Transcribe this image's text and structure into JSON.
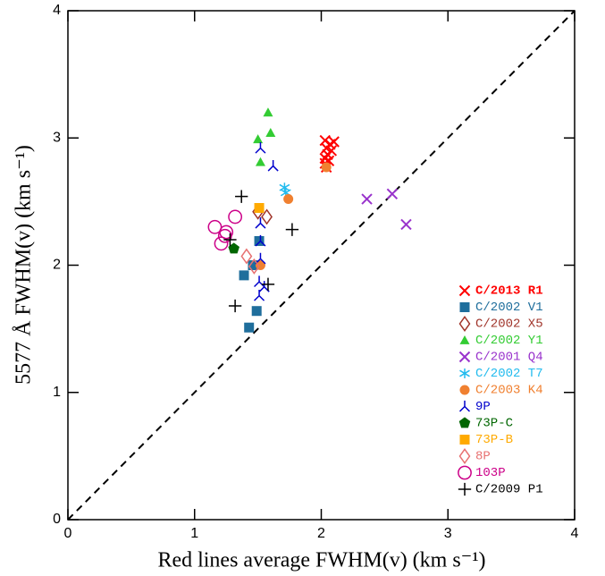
{
  "chart_data": {
    "type": "scatter",
    "xlabel": "Red lines average FWHM(v) (km s⁻¹)",
    "ylabel": "5577 Å FWHM(v) (km s⁻¹)",
    "xlim": [
      0,
      4
    ],
    "ylim": [
      0,
      4
    ],
    "xticks": [
      0,
      1,
      2,
      3,
      4
    ],
    "yticks": [
      0,
      1,
      2,
      3,
      4
    ],
    "series": [
      {
        "name": "C/2013 R1",
        "color": "#ff0000",
        "marker": "x",
        "x": [
          2.03,
          2.07,
          2.1,
          2.04,
          2.08,
          2.05,
          2.03,
          2.06,
          2.03,
          2.04
        ],
        "y": [
          2.98,
          2.95,
          2.97,
          2.92,
          2.9,
          2.87,
          2.84,
          2.82,
          2.8,
          2.77
        ]
      },
      {
        "name": "C/2002 V1",
        "color": "#1f6e9c",
        "marker": "square",
        "x": [
          1.43,
          1.49,
          1.39,
          1.51,
          1.46
        ],
        "y": [
          1.51,
          1.64,
          1.92,
          2.19,
          2.0
        ]
      },
      {
        "name": "C/2002 X5",
        "color": "#a0342a",
        "marker": "diamond-open",
        "x": [
          1.5,
          1.57
        ],
        "y": [
          2.42,
          2.38
        ]
      },
      {
        "name": "C/2002 Y1",
        "color": "#33cc33",
        "marker": "triangle",
        "x": [
          1.58,
          1.6,
          1.5,
          1.52
        ],
        "y": [
          3.2,
          3.04,
          2.99,
          2.81
        ]
      },
      {
        "name": "C/2001 Q4",
        "color": "#9933cc",
        "marker": "x",
        "x": [
          2.36,
          2.56,
          2.67
        ],
        "y": [
          2.52,
          2.56,
          2.32
        ]
      },
      {
        "name": "C/2002 T7",
        "color": "#22bbee",
        "marker": "asterisk",
        "x": [
          1.71,
          1.72
        ],
        "y": [
          2.61,
          2.57
        ]
      },
      {
        "name": "C/2003 K4",
        "color": "#f08030",
        "marker": "circle",
        "x": [
          2.04,
          1.74,
          1.52
        ],
        "y": [
          2.77,
          2.52,
          2.0
        ]
      },
      {
        "name": "9P",
        "color": "#0000cc",
        "marker": "tri",
        "x": [
          1.52,
          1.62,
          1.52,
          1.52,
          1.52,
          1.51,
          1.51,
          1.55
        ],
        "y": [
          2.92,
          2.78,
          2.33,
          2.19,
          2.05,
          1.87,
          1.76,
          1.83
        ]
      },
      {
        "name": "73P-C",
        "color": "#006600",
        "marker": "pentagon",
        "x": [
          1.31
        ],
        "y": [
          2.13
        ]
      },
      {
        "name": "73P-B",
        "color": "#ffaa00",
        "marker": "square",
        "x": [
          1.51
        ],
        "y": [
          2.45
        ]
      },
      {
        "name": "8P",
        "color": "#e87070",
        "marker": "diamond-open",
        "x": [
          1.41,
          1.47
        ],
        "y": [
          2.07,
          1.99
        ]
      },
      {
        "name": "103P",
        "color": "#cc0088",
        "marker": "circle-open",
        "x": [
          1.16,
          1.21,
          1.24,
          1.32,
          1.25
        ],
        "y": [
          2.3,
          2.17,
          2.23,
          2.38,
          2.26
        ]
      },
      {
        "name": "C/2009 P1",
        "color": "#000000",
        "marker": "plus",
        "x": [
          1.37,
          1.77,
          1.32,
          1.28,
          1.58
        ],
        "y": [
          2.54,
          2.28,
          1.68,
          2.2,
          1.85
        ]
      }
    ]
  }
}
